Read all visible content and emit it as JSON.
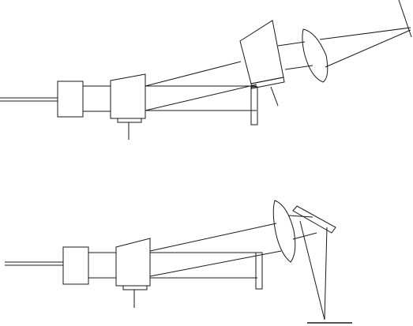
{
  "figure": {
    "background": "#ffffff",
    "stroke_color": "#1a1a1a",
    "panels": [
      {
        "name": "upper-optical-setup",
        "description": ""
      },
      {
        "name": "lower-optical-setup",
        "description": ""
      }
    ]
  }
}
